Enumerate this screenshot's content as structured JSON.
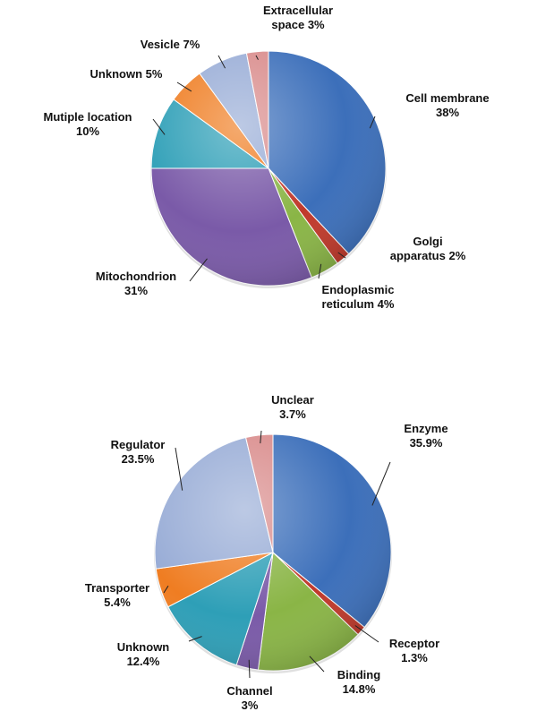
{
  "chart_data": [
    {
      "type": "pie",
      "slices": [
        {
          "lines": [
            "Cell membrane",
            "38%"
          ],
          "value": 38,
          "color": "#3c6fba"
        },
        {
          "lines": [
            "Golgi",
            "apparatus 2%"
          ],
          "value": 2,
          "color": "#c0392b"
        },
        {
          "lines": [
            "Endoplasmic",
            "reticulum 4%"
          ],
          "value": 4,
          "color": "#8ab546"
        },
        {
          "lines": [
            "Mitochondrion",
            "31%"
          ],
          "value": 31,
          "color": "#7a5aa8"
        },
        {
          "lines": [
            "Mutiple location",
            "10%"
          ],
          "value": 10,
          "color": "#2e9fb7"
        },
        {
          "lines": [
            "Unknown 5%"
          ],
          "value": 5,
          "color": "#ef7d22"
        },
        {
          "lines": [
            "Vesicle 7%"
          ],
          "value": 7,
          "color": "#98acd6"
        },
        {
          "lines": [
            "Extracellular",
            "space 3%"
          ],
          "value": 3,
          "color": "#d98b8b"
        }
      ]
    },
    {
      "type": "pie",
      "slices": [
        {
          "lines": [
            "Enzyme",
            "35.9%"
          ],
          "value": 35.9,
          "color": "#3c6fba"
        },
        {
          "lines": [
            "Receptor",
            "1.3%"
          ],
          "value": 1.3,
          "color": "#c0392b"
        },
        {
          "lines": [
            "Binding",
            "14.8%"
          ],
          "value": 14.8,
          "color": "#8ab546"
        },
        {
          "lines": [
            "Channel",
            "3%"
          ],
          "value": 3,
          "color": "#7a5aa8"
        },
        {
          "lines": [
            "Unknown",
            "12.4%"
          ],
          "value": 12.4,
          "color": "#2e9fb7"
        },
        {
          "lines": [
            "Transporter",
            "5.4%"
          ],
          "value": 5.4,
          "color": "#ef7d22"
        },
        {
          "lines": [
            "Regulator",
            "23.5%"
          ],
          "value": 23.5,
          "color": "#98acd6"
        },
        {
          "lines": [
            "Unclear",
            "3.7%"
          ],
          "value": 3.7,
          "color": "#d98b8b"
        }
      ]
    }
  ]
}
